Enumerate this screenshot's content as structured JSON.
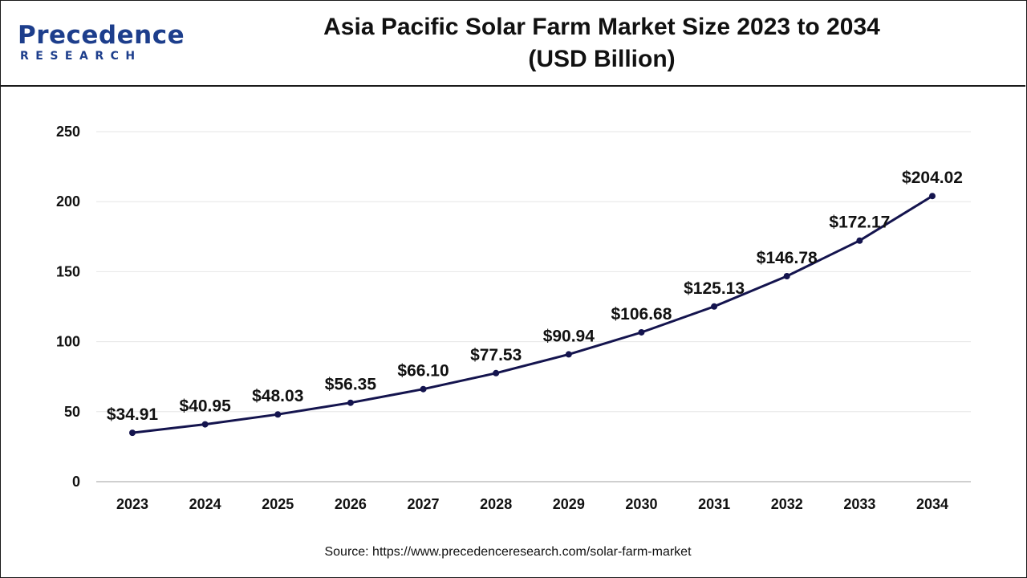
{
  "brand": {
    "logo_main": "Precedence",
    "logo_sub": "RESEARCH"
  },
  "title_line1": "Asia Pacific Solar Farm Market Size 2023 to 2034",
  "title_line2": "(USD Billion)",
  "source": "Source: https://www.precedenceresearch.com/solar-farm-market",
  "colors": {
    "line": "#14144e",
    "grid": "#e6e6e6",
    "brand": "#1d3e8c"
  },
  "chart_data": {
    "type": "line",
    "title": "Asia Pacific Solar Farm Market Size 2023 to 2034 (USD Billion)",
    "categories": [
      "2023",
      "2024",
      "2025",
      "2026",
      "2027",
      "2028",
      "2029",
      "2030",
      "2031",
      "2032",
      "2033",
      "2034"
    ],
    "values": [
      34.91,
      40.95,
      48.03,
      56.35,
      66.1,
      77.53,
      90.94,
      106.68,
      125.13,
      146.78,
      172.17,
      204.02
    ],
    "data_labels": [
      "$34.91",
      "$40.95",
      "$48.03",
      "$56.35",
      "$66.10",
      "$77.53",
      "$90.94",
      "$106.68",
      "$125.13",
      "$146.78",
      "$172.17",
      "$204.02"
    ],
    "ylim": [
      0,
      250
    ],
    "yticks": [
      0,
      50,
      100,
      150,
      200,
      250
    ],
    "ytick_labels": [
      "0",
      "50",
      "100",
      "150",
      "200",
      "250"
    ],
    "xlabel": "",
    "ylabel": "",
    "grid": true,
    "legend": false
  }
}
